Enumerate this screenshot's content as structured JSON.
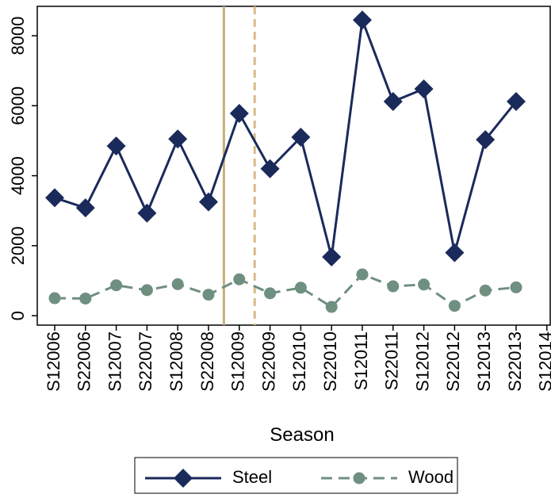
{
  "chart_data": {
    "type": "line",
    "x_label": "Season",
    "categories": [
      "S12006",
      "S22006",
      "S12007",
      "S22007",
      "S12008",
      "S22008",
      "S12009",
      "S22009",
      "S12010",
      "S22010",
      "S12011",
      "S22011",
      "S12012",
      "S22012",
      "S12013",
      "S22013",
      "S12014"
    ],
    "series": [
      {
        "name": "Steel",
        "color": "#1a2a5a",
        "marker": "diamond",
        "dash": "solid",
        "values": [
          3370,
          3080,
          4850,
          2930,
          5050,
          3250,
          5780,
          4200,
          5100,
          1680,
          8450,
          6120,
          6480,
          1800,
          5030,
          6120,
          null
        ]
      },
      {
        "name": "Wood",
        "color": "#6f8f80",
        "marker": "circle",
        "dash": "dashed",
        "values": [
          500,
          490,
          870,
          730,
          900,
          600,
          1040,
          640,
          800,
          250,
          1180,
          840,
          890,
          280,
          720,
          810,
          null
        ]
      }
    ],
    "vlines": [
      {
        "x": 5.5,
        "color": "#c8b07a",
        "dash": "solid"
      },
      {
        "x": 6.5,
        "color": "#d9b98a",
        "dash": "dashed"
      }
    ],
    "ylim": [
      -270,
      8840
    ],
    "yticks": [
      0,
      2000,
      4000,
      6000,
      8000
    ],
    "legend": "bottom"
  }
}
